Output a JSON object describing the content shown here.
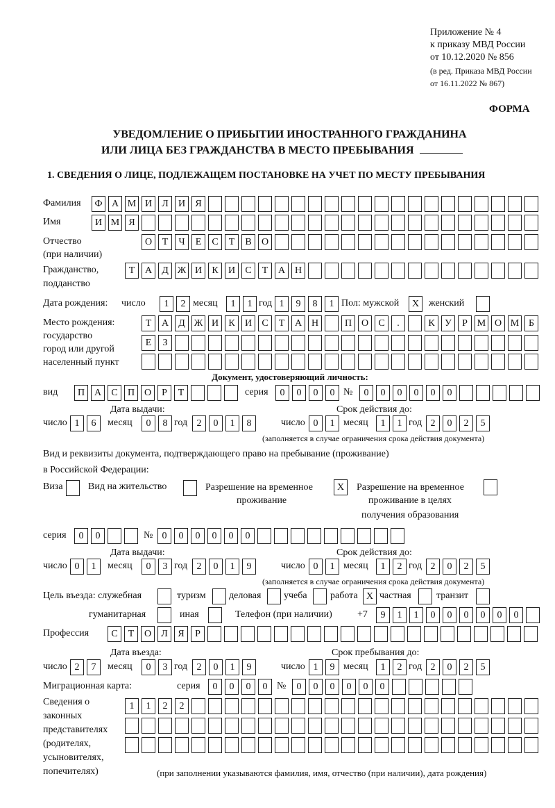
{
  "header": {
    "appendix_line1": "Приложение № 4",
    "appendix_line2": "к приказу МВД России",
    "appendix_line3": "от 10.12.2020 № 856",
    "edition_line1": "(в ред. Приказа МВД России",
    "edition_line2": "от 16.11.2022 № 867)",
    "form_label": "ФОРМА"
  },
  "title": {
    "line1": "УВЕДОМЛЕНИЕ О ПРИБЫТИИ ИНОСТРАННОГО ГРАЖДАНИНА",
    "line2": "ИЛИ ЛИЦА БЕЗ ГРАЖДАНСТВА В МЕСТО ПРЕБЫВАНИЯ"
  },
  "section1": {
    "heading": "1. СВЕДЕНИЯ О ЛИЦЕ, ПОДЛЕЖАЩЕМ ПОСТАНОВКЕ НА УЧЕТ ПО МЕСТУ ПРЕБЫВАНИЯ",
    "surname": {
      "label": "Фамилия",
      "value": "ФАМИЛИЯ"
    },
    "name": {
      "label": "Имя",
      "value": "ИМЯ"
    },
    "patronymic": {
      "label": "Отчество",
      "label2": "(при наличии)",
      "value": "ОТЧЕСТВО"
    },
    "citizenship": {
      "label": "Гражданство,",
      "label2": "подданство",
      "value": "ТАДЖИКИСТАН"
    },
    "birth": {
      "label": "Дата рождения:",
      "day_label": "число",
      "day": "12",
      "month_label": "месяц",
      "month": "11",
      "year_label": "год",
      "year": "1981",
      "sex_label": "Пол: мужской",
      "male": "X",
      "female_label": "женский",
      "female": ""
    },
    "birthplace": {
      "label1": "Место рождения:",
      "label2": "государство",
      "label3": "город или другой",
      "label4": "населенный пункт",
      "line1": "ТАДЖИКИСТАН ПОС. КУРМОМБ",
      "line2": "ЕЗ",
      "line3": ""
    },
    "id_doc": {
      "heading": "Документ, удостоверяющий личность:",
      "type_label": "вид",
      "type": "ПАСПОРТ",
      "series_label": "серия",
      "series": "0000",
      "number_label": "№",
      "number": "000000",
      "issue_label": "Дата выдачи:",
      "valid_label": "Срок действия до:",
      "day_label": "число",
      "month_label": "месяц",
      "year_label": "год",
      "issue_day": "16",
      "issue_month": "08",
      "issue_year": "2018",
      "valid_day": "01",
      "valid_month": "11",
      "valid_year": "2025",
      "note": "(заполняется в случае ограничения срока действия документа)"
    },
    "stay_doc": {
      "label1": "Вид и реквизиты документа, подтверждающего право на пребывание (проживание)",
      "label2": "в Российской Федерации:",
      "visa_label": "Виза",
      "visa": "",
      "residence_label": "Вид на жительство",
      "residence": "",
      "trp_label1": "Разрешение на временное",
      "trp_label2": "проживание",
      "trp": "X",
      "trp_edu_label1": "Разрешение на временное",
      "trp_edu_label2": "проживание в целях",
      "trp_edu_label3": "получения образования",
      "trp_edu": "",
      "series_label": "серия",
      "series": "00",
      "number_label": "№",
      "number": "000000",
      "issue_label": "Дата выдачи:",
      "valid_label": "Срок действия до:",
      "day_label": "число",
      "month_label": "месяц",
      "year_label": "год",
      "issue_day": "01",
      "issue_month": "03",
      "issue_year": "2019",
      "valid_day": "01",
      "valid_month": "12",
      "valid_year": "2025",
      "note": "(заполняется в случае ограничения срока действия документа)"
    },
    "purpose": {
      "label": "Цель въезда: служебная",
      "service": "",
      "tourism_label": "туризм",
      "tourism": "",
      "business_label": "деловая",
      "business": "",
      "study_label": "учеба",
      "study": "",
      "work_label": "работа",
      "work": "X",
      "private_label": "частная",
      "private": "",
      "transit_label": "транзит",
      "transit": "",
      "humanitarian_label": "гуманитарная",
      "humanitarian": "",
      "other_label": "иная",
      "other": ""
    },
    "phone": {
      "label": "Телефон (при наличии)",
      "prefix": "+7",
      "value": "911000000"
    },
    "profession": {
      "label": "Профессия",
      "value": "СТОЛЯР"
    },
    "entry": {
      "entry_label": "Дата въезда:",
      "stay_label": "Срок пребывания до:",
      "day_label": "число",
      "month_label": "месяц",
      "year_label": "год",
      "entry_day": "27",
      "entry_month": "03",
      "entry_year": "2019",
      "stay_day": "19",
      "stay_month": "12",
      "stay_year": "2025"
    },
    "migration_card": {
      "label": "Миграционная карта:",
      "series_label": "серия",
      "series": "0000",
      "number_label": "№",
      "number": "000000"
    },
    "representatives": {
      "label1": "Сведения о",
      "label2": "законных",
      "label3": "представителях",
      "label4": "(родителях,",
      "label5": "усыновителях,",
      "label6": "попечителях)",
      "line1": "1122",
      "line2": "",
      "line3": "",
      "note": "(при заполнении указываются фамилия, имя, отчество (при наличии), дата рождения)"
    }
  }
}
